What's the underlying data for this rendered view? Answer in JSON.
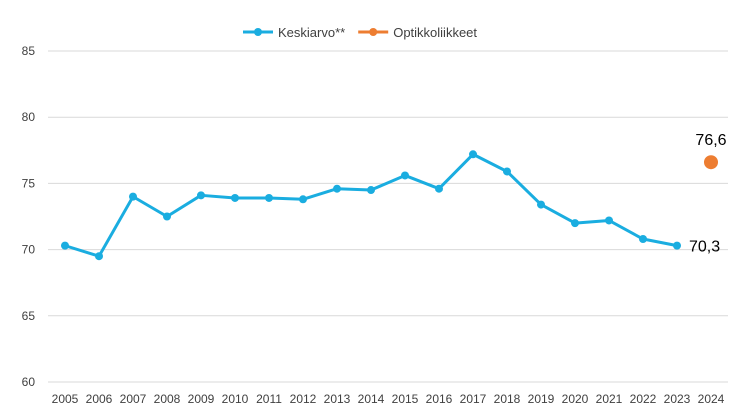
{
  "chart_data": {
    "type": "line",
    "title": "",
    "xlabel": "",
    "ylabel": "",
    "categories": [
      "2005",
      "2006",
      "2007",
      "2008",
      "2009",
      "2010",
      "2011",
      "2012",
      "2013",
      "2014",
      "2015",
      "2016",
      "2017",
      "2018",
      "2019",
      "2020",
      "2021",
      "2022",
      "2023",
      "2024"
    ],
    "ylim": [
      60,
      85
    ],
    "yticks": [
      60,
      65,
      70,
      75,
      80,
      85
    ],
    "grid": true,
    "legend_position": "top-center",
    "series": [
      {
        "name": "Keskiarvo**",
        "color": "#1AADE0",
        "values": [
          70.3,
          69.5,
          74.0,
          72.5,
          74.1,
          73.9,
          73.9,
          73.8,
          74.6,
          74.5,
          75.6,
          74.6,
          77.2,
          75.9,
          73.4,
          72.0,
          72.2,
          70.8,
          70.3,
          null
        ],
        "end_label": "70,3"
      },
      {
        "name": "Optikkoliikkeet",
        "color": "#ED7D31",
        "values": [
          null,
          null,
          null,
          null,
          null,
          null,
          null,
          null,
          null,
          null,
          null,
          null,
          null,
          null,
          null,
          null,
          null,
          null,
          null,
          76.6
        ],
        "end_label": "76,6"
      }
    ]
  }
}
